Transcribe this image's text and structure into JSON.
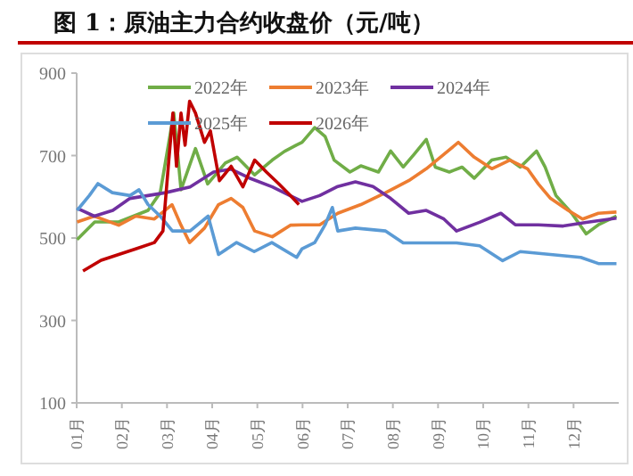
{
  "chart_data": {
    "type": "line",
    "title": "图 1：原油主力合约收盘价（元/吨）",
    "legend": "top",
    "grid": false,
    "xlim": [
      1,
      13
    ],
    "xticks": [
      {
        "value": 1,
        "label": "01月"
      },
      {
        "value": 2,
        "label": "02月"
      },
      {
        "value": 3,
        "label": "03月"
      },
      {
        "value": 4,
        "label": "04月"
      },
      {
        "value": 5,
        "label": "05月"
      },
      {
        "value": 6,
        "label": "06月"
      },
      {
        "value": 7,
        "label": "07月"
      },
      {
        "value": 8,
        "label": "08月"
      },
      {
        "value": 9,
        "label": "09月"
      },
      {
        "value": 10,
        "label": "10月"
      },
      {
        "value": 11,
        "label": "11月"
      },
      {
        "value": 12,
        "label": "12月"
      }
    ],
    "ylim": [
      100,
      900
    ],
    "yticks": [
      100,
      300,
      500,
      700,
      900
    ],
    "series": [
      {
        "name": "2022年",
        "color": "#70ad47",
        "x": [
          1.01,
          1.4,
          1.93,
          2.58,
          2.85,
          3.15,
          3.31,
          3.63,
          3.9,
          4.29,
          4.55,
          4.94,
          5.33,
          5.6,
          5.86,
          5.99,
          6.27,
          6.5,
          6.7,
          7.05,
          7.29,
          7.68,
          7.95,
          8.23,
          8.47,
          8.74,
          8.94,
          9.25,
          9.53,
          9.8,
          10.19,
          10.51,
          10.82,
          11.18,
          11.37,
          11.61,
          11.96,
          12.28,
          12.55,
          12.95
        ],
        "values": [
          496,
          539,
          539,
          567,
          610,
          803,
          617,
          717,
          631,
          682,
          696,
          653,
          689,
          710,
          725,
          732,
          768,
          746,
          689,
          660,
          675,
          660,
          711,
          672,
          703,
          739,
          672,
          660,
          672,
          645,
          689,
          696,
          672,
          711,
          672,
          603,
          560,
          510,
          532,
          553
        ]
      },
      {
        "name": "2023年",
        "color": "#ed7d31",
        "x": [
          1.01,
          1.39,
          1.93,
          2.31,
          2.72,
          3.11,
          3.31,
          3.5,
          3.83,
          4.14,
          4.42,
          4.68,
          4.94,
          5.33,
          5.73,
          5.99,
          6.38,
          6.78,
          7.29,
          7.84,
          8.35,
          8.74,
          9.13,
          9.45,
          9.8,
          10.19,
          10.59,
          10.98,
          11.22,
          11.49,
          11.88,
          12.2,
          12.55,
          12.95
        ],
        "values": [
          539,
          553,
          531,
          553,
          546,
          581,
          531,
          489,
          524,
          581,
          596,
          574,
          517,
          503,
          531,
          532,
          532,
          560,
          581,
          610,
          639,
          668,
          703,
          732,
          696,
          668,
          689,
          668,
          631,
          596,
          567,
          546,
          560,
          563
        ]
      },
      {
        "name": "2024年",
        "color": "#7030a0",
        "x": [
          1.01,
          1.39,
          1.8,
          2.18,
          2.58,
          2.97,
          3.51,
          4.03,
          4.42,
          4.81,
          5.33,
          5.72,
          5.99,
          6.38,
          6.78,
          7.17,
          7.56,
          7.95,
          8.35,
          8.74,
          9.13,
          9.41,
          9.92,
          10.39,
          10.71,
          11.22,
          11.77,
          12.28,
          12.95
        ],
        "values": [
          572,
          553,
          567,
          596,
          603,
          610,
          624,
          660,
          667,
          646,
          624,
          603,
          589,
          603,
          625,
          636,
          625,
          596,
          560,
          567,
          546,
          517,
          538,
          560,
          532,
          532,
          529,
          538,
          548
        ]
      },
      {
        "name": "2025年",
        "color": "#5b9bd5",
        "x": [
          1.01,
          1.28,
          1.47,
          1.79,
          2.18,
          2.38,
          2.58,
          2.85,
          3.12,
          3.51,
          3.91,
          4.14,
          4.54,
          4.93,
          5.32,
          5.87,
          5.99,
          6.27,
          6.5,
          6.66,
          6.78,
          7.17,
          7.84,
          8.23,
          8.74,
          9.41,
          9.92,
          10.43,
          10.82,
          11.49,
          12.16,
          12.55,
          12.95
        ],
        "values": [
          567,
          603,
          632,
          610,
          603,
          617,
          581,
          553,
          517,
          517,
          553,
          460,
          489,
          467,
          489,
          453,
          474,
          489,
          532,
          574,
          517,
          524,
          517,
          488,
          488,
          488,
          481,
          445,
          467,
          460,
          453,
          438,
          438
        ]
      },
      {
        "name": "2026年",
        "color": "#c00000",
        "x": [
          1.14,
          1.54,
          1.93,
          2.32,
          2.72,
          2.91,
          3.04,
          3.13,
          3.21,
          3.31,
          3.4,
          3.5,
          3.63,
          3.83,
          3.96,
          4.16,
          4.42,
          4.68,
          4.94,
          5.2,
          5.47,
          5.73,
          5.92
        ],
        "values": [
          420,
          446,
          460,
          474,
          489,
          517,
          689,
          803,
          674,
          803,
          725,
          832,
          803,
          732,
          760,
          639,
          674,
          624,
          689,
          660,
          632,
          603,
          581
        ]
      }
    ]
  }
}
